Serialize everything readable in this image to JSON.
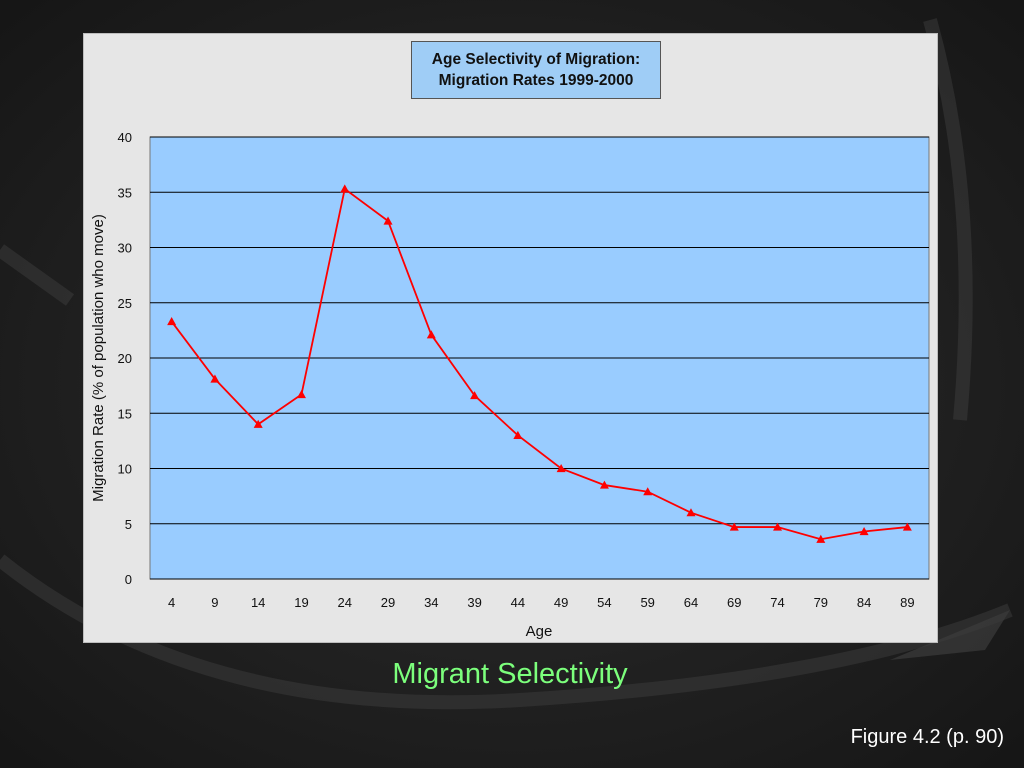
{
  "colors": {
    "background": "#1a1a1a",
    "panel": "#e6e6e6",
    "plot_area": "#99ccff",
    "series": "#ff0000",
    "caption": "#7cff7c"
  },
  "chart_data": {
    "type": "line",
    "title_line1": "Age Selectivity of Migration:",
    "title_line2": "Migration Rates 1999-2000",
    "xlabel": "Age",
    "ylabel": "Migration Rate (% of population who move)",
    "categories": [
      "4",
      "9",
      "14",
      "19",
      "24",
      "29",
      "34",
      "39",
      "44",
      "49",
      "54",
      "59",
      "64",
      "69",
      "74",
      "79",
      "84",
      "89"
    ],
    "series": [
      {
        "values": [
          23.3,
          18.1,
          14.0,
          16.7,
          35.3,
          32.4,
          22.1,
          16.6,
          13.0,
          10.0,
          8.5,
          7.9,
          6.0,
          4.7,
          4.7,
          3.6,
          4.3,
          4.7
        ],
        "marker": "triangle"
      }
    ],
    "ylim": [
      0,
      40
    ],
    "yticks": [
      0,
      5,
      10,
      15,
      20,
      25,
      30,
      35,
      40
    ],
    "grid": true,
    "legend": "none"
  },
  "slide": {
    "caption": "Migrant Selectivity",
    "figure_ref": "Figure 4.2 (p. 90)"
  }
}
